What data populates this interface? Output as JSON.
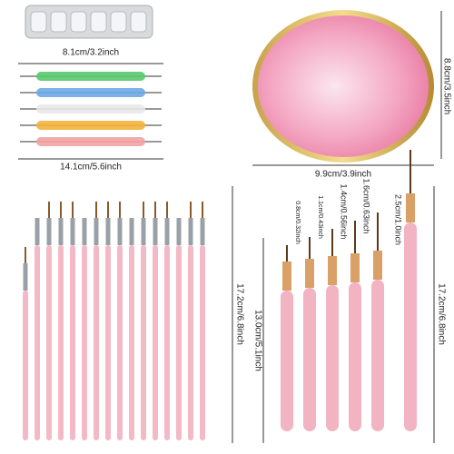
{
  "rhinestone_tray": {
    "width": "8.1cm/3.2inch"
  },
  "dotting_tools": {
    "length": "14.1cm/5.6inch"
  },
  "palette": {
    "height": "8.8cm/3.5inch",
    "width": "9.9cm/3.9inch"
  },
  "brush_set": {
    "length": "17.2cm/6.8inch"
  },
  "liner_brushes": {
    "bristle_lengths": [
      "0.8cm/0.32inch",
      "1.1cm/0.43inch",
      "1.4cm/0.56inch",
      "1.6cm/0.63inch",
      "2.5cm/1.0inch"
    ],
    "handle_length": "13.0cm/5.1inch",
    "total_length": "17.2cm/6.8inch"
  }
}
